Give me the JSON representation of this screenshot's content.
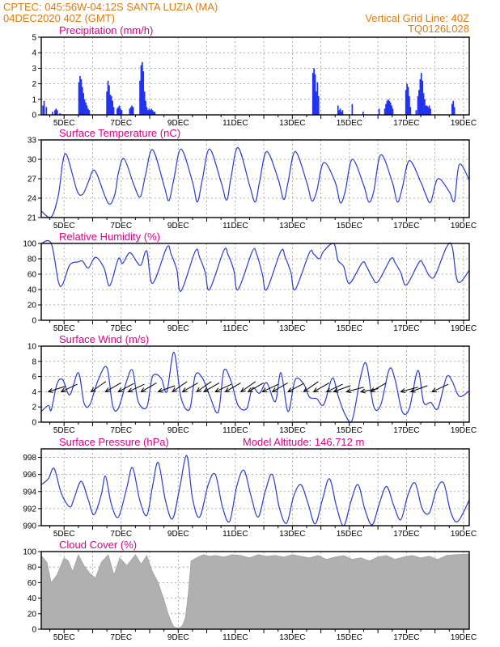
{
  "header": {
    "line1_left": "CPTEC:   045:56W-04:12S   SANTA LUZIA (MA)",
    "line2_left": "04DEC2020 40Z (GMT)",
    "line1_right": "Vertical Grid Line: 40Z",
    "line2_right": "TQ0126L028"
  },
  "colors": {
    "header_text": "#e07b10",
    "panel_title": "#e0008a",
    "series": "#2a3ad8",
    "bars": "#2233ee",
    "cloud_fill": "#b0b0b0",
    "arrows": "#000000"
  },
  "x_axis_labels": [
    "5DEC",
    "7DEC",
    "9DEC",
    "11DEC",
    "13DEC",
    "15DEC",
    "17DEC",
    "19DEC"
  ],
  "chart_data": [
    {
      "id": "precip",
      "type": "bar",
      "title": "Precipitation (mm/h)",
      "ylim": [
        0,
        5
      ],
      "yticks": [
        0,
        1,
        2,
        3,
        4,
        5
      ],
      "xlim_days": [
        4.2,
        19.2
      ],
      "grid": true,
      "series": [
        {
          "x": [
            4.26,
            4.3,
            4.38,
            4.6,
            4.68,
            4.72,
            4.76,
            4.86,
            5.52,
            5.56,
            5.6,
            5.64,
            5.68,
            5.72,
            5.76,
            5.8,
            5.84,
            5.88,
            6.5,
            6.54,
            6.58,
            6.62,
            6.66,
            6.7,
            6.74,
            6.86,
            6.9,
            6.94,
            6.98,
            7.02,
            7.3,
            7.34,
            7.38,
            7.42,
            7.66,
            7.7,
            7.74,
            7.78,
            7.82,
            7.86,
            7.9,
            7.94,
            7.98,
            8.02,
            8.06,
            8.1,
            8.14,
            8.18,
            13.72,
            13.76,
            13.8,
            13.84,
            13.88,
            13.92,
            14.6,
            14.64,
            14.68,
            14.72,
            14.76,
            15.1,
            15.48,
            16.04,
            16.24,
            16.28,
            16.32,
            16.36,
            16.4,
            16.44,
            16.48,
            16.52,
            16.98,
            17.02,
            17.06,
            17.1,
            17.14,
            17.34,
            17.4,
            17.44,
            17.48,
            17.52,
            17.56,
            17.6,
            17.64,
            17.68,
            17.72,
            17.76,
            17.8,
            17.84,
            18.6,
            18.64,
            18.68
          ],
          "values": [
            0.6,
            0.9,
            0.5,
            0.2,
            0.3,
            0.4,
            0.3,
            0.1,
            2.1,
            2.5,
            2.3,
            1.8,
            1.4,
            1.0,
            0.8,
            0.6,
            0.4,
            0.3,
            1.5,
            2.2,
            1.9,
            1.3,
            1.2,
            0.9,
            0.5,
            0.4,
            0.5,
            0.6,
            0.4,
            0.3,
            0.4,
            0.5,
            0.6,
            0.5,
            2.2,
            3.2,
            3.4,
            2.8,
            1.5,
            0.9,
            0.5,
            0.3,
            0.4,
            0.3,
            0.4,
            0.3,
            0.2,
            0.2,
            2.7,
            3.0,
            2.6,
            1.5,
            2.1,
            1.2,
            0.6,
            0.3,
            0.4,
            0.2,
            0.3,
            0.7,
            0.2,
            0.4,
            0.4,
            0.7,
            0.9,
            1.0,
            0.9,
            0.8,
            0.6,
            0.4,
            1.6,
            2.0,
            1.8,
            1.2,
            0.5,
            0.3,
            1.2,
            1.6,
            2.3,
            2.7,
            2.2,
            1.4,
            1.0,
            0.6,
            0.6,
            0.5,
            0.6,
            0.4,
            0.7,
            0.9,
            0.5
          ]
        }
      ]
    },
    {
      "id": "temp",
      "type": "line",
      "title": "Surface Temperature (nC)",
      "ylim": [
        21,
        33
      ],
      "yticks": [
        21,
        24,
        27,
        30,
        33
      ],
      "xlim_days": [
        4.2,
        19.2
      ],
      "grid": true,
      "series": [
        {
          "x": [
            4.2,
            4.55,
            4.8,
            4.95,
            5.1,
            5.45,
            5.65,
            5.85,
            6.0,
            6.15,
            6.55,
            6.78,
            6.9,
            7.1,
            7.45,
            7.67,
            7.85,
            8.1,
            8.5,
            8.67,
            8.85,
            9.1,
            9.5,
            9.67,
            9.85,
            10.1,
            10.5,
            10.7,
            10.85,
            11.1,
            11.5,
            11.7,
            11.85,
            12.1,
            12.5,
            12.7,
            12.85,
            13.1,
            13.5,
            13.68,
            13.85,
            14.1,
            14.5,
            14.68,
            14.85,
            15.1,
            15.5,
            15.68,
            15.85,
            16.1,
            16.5,
            16.68,
            16.85,
            17.1,
            17.5,
            17.68,
            17.85,
            18.1,
            18.5,
            18.68,
            18.85,
            19.2
          ],
          "values": [
            22.0,
            21.1,
            24.5,
            29.5,
            30.6,
            25.2,
            24.6,
            26.5,
            28.2,
            27.7,
            23.2,
            24.6,
            27.8,
            30.1,
            26.0,
            24.2,
            27.5,
            31.5,
            26.0,
            23.6,
            27.0,
            31.6,
            26.5,
            23.4,
            27.0,
            31.6,
            26.5,
            23.7,
            27.2,
            31.8,
            26.0,
            23.4,
            26.5,
            31.2,
            27.0,
            23.8,
            26.5,
            31.2,
            26.5,
            23.6,
            25.0,
            29.5,
            26.5,
            23.3,
            25.0,
            30.0,
            26.0,
            23.4,
            25.0,
            30.7,
            26.5,
            23.4,
            25.5,
            29.8,
            26.5,
            24.5,
            23.4,
            27.0,
            25.0,
            23.6,
            29.2,
            26.8
          ]
        }
      ]
    },
    {
      "id": "rh",
      "type": "line",
      "title": "Relative Humidity (%)",
      "ylim": [
        0,
        100
      ],
      "yticks": [
        0,
        20,
        40,
        60,
        80,
        100
      ],
      "xlim_days": [
        4.2,
        19.2
      ],
      "grid": true,
      "series": [
        {
          "x": [
            4.2,
            4.55,
            4.8,
            4.95,
            5.2,
            5.5,
            5.65,
            5.85,
            6.1,
            6.4,
            6.6,
            6.9,
            7.05,
            7.3,
            7.55,
            7.7,
            7.9,
            8.1,
            8.6,
            8.75,
            8.95,
            9.1,
            9.6,
            9.75,
            9.95,
            10.1,
            10.6,
            10.75,
            10.95,
            11.1,
            11.6,
            11.75,
            11.95,
            12.1,
            12.6,
            12.75,
            12.95,
            13.1,
            13.6,
            13.75,
            13.95,
            14.1,
            14.45,
            14.6,
            14.8,
            15.0,
            15.45,
            15.6,
            15.8,
            16.0,
            16.45,
            16.6,
            16.8,
            17.0,
            17.45,
            17.6,
            17.8,
            18.0,
            18.4,
            18.6,
            18.8,
            19.2
          ],
          "values": [
            100,
            100,
            50,
            47,
            72,
            76,
            77,
            68,
            82,
            68,
            45,
            80,
            74,
            88,
            76,
            72,
            90,
            48,
            95,
            86,
            66,
            38,
            90,
            82,
            62,
            40,
            91,
            85,
            65,
            40,
            90,
            86,
            60,
            40,
            90,
            82,
            62,
            40,
            88,
            86,
            80,
            90,
            100,
            78,
            70,
            48,
            75,
            70,
            56,
            50,
            80,
            75,
            62,
            46,
            76,
            72,
            58,
            58,
            95,
            96,
            50,
            65
          ]
        }
      ]
    },
    {
      "id": "wind",
      "type": "line",
      "title": "Surface Wind (m/s)",
      "ylim": [
        0,
        10
      ],
      "yticks": [
        0,
        2,
        4,
        6,
        8,
        10
      ],
      "xlim_days": [
        4.2,
        19.2
      ],
      "grid": true,
      "series": [
        {
          "x": [
            4.2,
            4.45,
            4.55,
            4.75,
            4.95,
            5.2,
            5.5,
            5.7,
            5.9,
            6.2,
            6.5,
            6.7,
            6.9,
            7.2,
            7.4,
            7.6,
            7.9,
            8.1,
            8.4,
            8.6,
            8.85,
            9.1,
            9.4,
            9.6,
            9.85,
            10.1,
            10.4,
            10.6,
            10.85,
            11.1,
            11.4,
            11.6,
            11.85,
            12.1,
            12.4,
            12.6,
            12.85,
            13.1,
            13.4,
            13.6,
            13.85,
            14.1,
            14.4,
            14.6,
            14.85,
            15.1,
            15.4,
            15.6,
            15.85,
            16.1,
            16.4,
            16.6,
            16.85,
            17.1,
            17.4,
            17.6,
            17.85,
            18.1,
            18.4,
            18.6,
            18.85,
            19.2
          ],
          "values": [
            1.4,
            2.2,
            1.6,
            5.0,
            5.6,
            3.6,
            6.5,
            2.5,
            2.3,
            5.6,
            7.2,
            2.2,
            1.8,
            5.5,
            6.8,
            2.7,
            2.0,
            6.0,
            5.8,
            4.0,
            9.2,
            3.2,
            1.7,
            6.2,
            5.8,
            3.5,
            1.3,
            6.8,
            5.4,
            2.2,
            1.8,
            4.5,
            3.8,
            5.2,
            2.7,
            6.5,
            1.4,
            5.6,
            5.0,
            3.3,
            3.1,
            2.3,
            5.8,
            3.5,
            1.0,
            0.3,
            6.1,
            7.6,
            2.1,
            2.3,
            7.0,
            5.6,
            1.4,
            1.8,
            6.8,
            2.6,
            2.6,
            1.8,
            5.9,
            5.4,
            3.4,
            4.1
          ]
        }
      ],
      "arrows": {
        "x": [
          4.45,
          4.9,
          5.95,
          6.45,
          6.9,
          7.25,
          7.7,
          8.3,
          8.8,
          9.15,
          9.65,
          9.9,
          10.3,
          10.65,
          11.2,
          11.45,
          11.95,
          12.3,
          12.85,
          13.4,
          13.75,
          14.2,
          14.45,
          14.9,
          15.4,
          15.75,
          16.8,
          17.15,
          17.9
        ],
        "dirs_deg": [
          198,
          205,
          215,
          210,
          208,
          205,
          210,
          200,
          215,
          210,
          215,
          210,
          205,
          210,
          215,
          210,
          205,
          210,
          208,
          215,
          210,
          205,
          200,
          195,
          190,
          210,
          195,
          200,
          205
        ]
      }
    },
    {
      "id": "press",
      "type": "line",
      "title": "Surface Pressure (hPa)",
      "annotation": "Model Altitude: 146.712 m",
      "ylim": [
        990,
        999
      ],
      "yticks": [
        990,
        992,
        994,
        996,
        998
      ],
      "xlim_days": [
        4.2,
        19.2
      ],
      "grid": true,
      "series": [
        {
          "x": [
            4.2,
            4.45,
            4.65,
            4.9,
            5.2,
            5.35,
            5.6,
            5.85,
            6.05,
            6.3,
            6.45,
            6.65,
            6.9,
            7.2,
            7.4,
            7.65,
            7.9,
            8.1,
            8.3,
            8.55,
            8.8,
            9.05,
            9.3,
            9.5,
            9.75,
            10.05,
            10.3,
            10.55,
            10.8,
            11.05,
            11.3,
            11.55,
            11.8,
            12.05,
            12.3,
            12.55,
            12.8,
            13.05,
            13.3,
            13.55,
            13.8,
            14.05,
            14.3,
            14.55,
            14.8,
            15.05,
            15.3,
            15.55,
            15.8,
            16.05,
            16.3,
            16.55,
            16.8,
            17.05,
            17.3,
            17.55,
            17.8,
            18.05,
            18.3,
            18.55,
            18.8,
            19.2
          ],
          "values": [
            994.8,
            995.5,
            996.7,
            993.8,
            992.2,
            993.2,
            995.2,
            993.0,
            991.3,
            993.6,
            995.8,
            992.6,
            991.0,
            994.5,
            996.8,
            993.0,
            991.2,
            994.6,
            997.4,
            993.0,
            990.8,
            994.4,
            998.2,
            993.2,
            991.0,
            994.8,
            996.0,
            992.2,
            990.5,
            994.6,
            996.5,
            993.5,
            991.0,
            994.0,
            996.0,
            992.0,
            990.3,
            993.5,
            994.8,
            992.6,
            990.2,
            993.0,
            995.5,
            992.2,
            990.0,
            992.8,
            994.8,
            991.8,
            990.1,
            992.6,
            994.6,
            992.4,
            990.7,
            993.6,
            995.0,
            992.0,
            991.5,
            994.2,
            995.0,
            991.6,
            990.5,
            993.0
          ]
        }
      ]
    },
    {
      "id": "cloud",
      "type": "area",
      "title": "Cloud Cover (%)",
      "ylim": [
        0,
        100
      ],
      "yticks": [
        0,
        20,
        40,
        60,
        80,
        100
      ],
      "xlim_days": [
        4.2,
        19.2
      ],
      "grid": true,
      "series": [
        {
          "x": [
            4.2,
            4.4,
            4.55,
            4.75,
            5.0,
            5.15,
            5.3,
            5.5,
            5.7,
            5.9,
            6.1,
            6.3,
            6.55,
            6.75,
            6.95,
            7.2,
            7.5,
            7.7,
            7.9,
            8.1,
            8.3,
            8.5,
            8.65,
            8.75,
            8.85,
            8.95,
            9.05,
            9.15,
            9.25,
            9.35,
            9.45,
            9.6,
            9.75,
            9.9,
            10.1,
            10.3,
            10.6,
            10.9,
            11.2,
            11.5,
            11.8,
            12.1,
            12.4,
            12.7,
            13.0,
            13.3,
            13.6,
            13.9,
            14.2,
            14.5,
            14.8,
            15.1,
            15.4,
            15.7,
            16.0,
            16.3,
            16.6,
            16.9,
            17.2,
            17.5,
            17.8,
            18.1,
            18.4,
            18.7,
            19.2
          ],
          "values": [
            95,
            86,
            60,
            70,
            92,
            88,
            74,
            96,
            82,
            72,
            66,
            86,
            96,
            70,
            92,
            82,
            96,
            84,
            95,
            74,
            60,
            38,
            20,
            10,
            3,
            2,
            2,
            5,
            15,
            45,
            88,
            91,
            94,
            96,
            94,
            95,
            93,
            96,
            95,
            92,
            96,
            94,
            95,
            93,
            96,
            94,
            92,
            95,
            90,
            93,
            95,
            90,
            92,
            88,
            93,
            95,
            90,
            93,
            95,
            92,
            94,
            90,
            95,
            96,
            97
          ]
        }
      ]
    }
  ]
}
